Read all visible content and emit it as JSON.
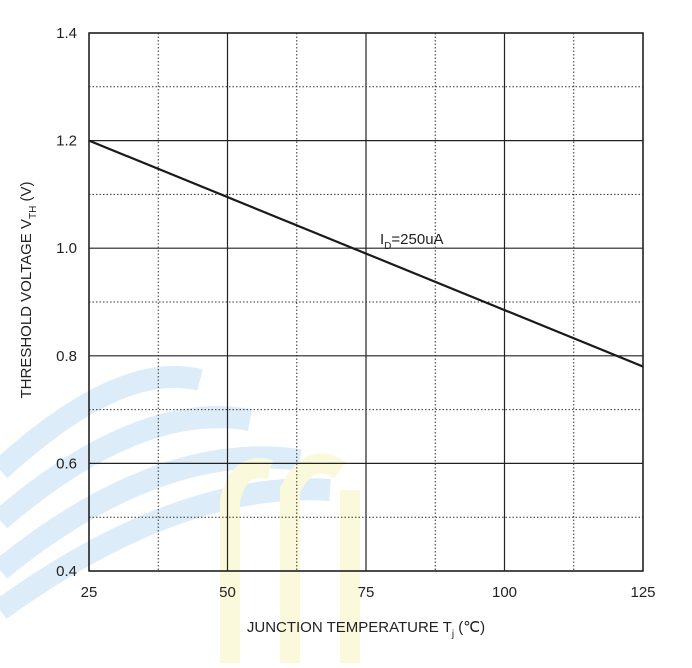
{
  "chart_data": {
    "type": "line",
    "x_label": [
      "JUNCTION TEMPERATURE T",
      "j",
      " (℃)"
    ],
    "y_label": [
      "THRESHOLD VOLTAGE V",
      "TH",
      " (V)"
    ],
    "annotation": [
      "I",
      "D",
      "=250uA"
    ],
    "x": [
      25,
      125
    ],
    "series": [
      {
        "color": "#1a1a1a",
        "values": [
          1.2,
          0.78
        ]
      }
    ],
    "xlim": [
      25,
      125
    ],
    "ylim": [
      0.4,
      1.4
    ],
    "xticks": [
      25,
      50,
      75,
      100,
      125
    ],
    "yticks": [
      0.4,
      0.6,
      0.8,
      {
        "value": 1,
        "label": "1.0"
      },
      1.2,
      1.4
    ],
    "x_minor_ticks": [
      37.5,
      62.5,
      87.5,
      112.5
    ],
    "y_minor_ticks": [
      0.5,
      0.7,
      0.9,
      1.1,
      1.3
    ],
    "grid": true
  }
}
